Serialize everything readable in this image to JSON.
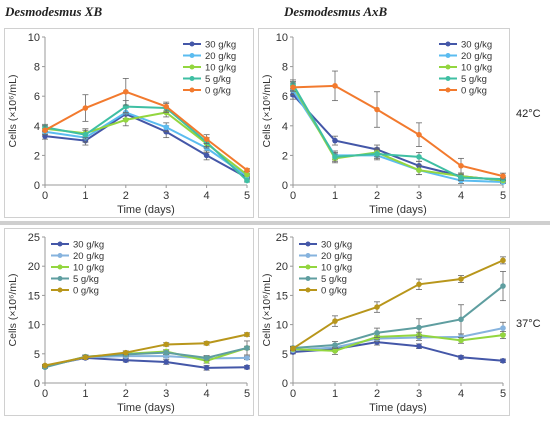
{
  "col_titles": [
    "Desmodesmus XB",
    "Desmodesmus AxB"
  ],
  "row_labels": [
    "42°C",
    "37°C"
  ],
  "colors": {
    "30 g/kg": "#4457a8",
    "20 g/kg": "#5bbcf0",
    "10 g/kg": "#93d63f",
    "5 g/kg": "#3fbfa3",
    "0 g/kg": "#f27a2e",
    "20 g/kg b": "#86b3de",
    "5 g/kg b": "#5f9ea0",
    "0 g/kg b": "#b8961b"
  },
  "chart_data": [
    {
      "type": "line",
      "panel": "top-left",
      "xlabel": "Time (days)",
      "ylabel": "Cells (×10⁶/mL)",
      "x": [
        0,
        1,
        2,
        3,
        4,
        5
      ],
      "ylim": [
        0,
        10
      ],
      "yticks": [
        0,
        2,
        4,
        6,
        8,
        10
      ],
      "legend": "top-right",
      "series": [
        {
          "name": "30 g/kg",
          "color": "30 g/kg",
          "values": [
            3.3,
            3.0,
            4.8,
            3.6,
            2.0,
            0.5
          ],
          "err": [
            0.2,
            0.3,
            0.4,
            0.4,
            0.3,
            0.1
          ]
        },
        {
          "name": "20 g/kg",
          "color": "20 g/kg",
          "values": [
            3.6,
            3.2,
            4.9,
            3.9,
            2.5,
            0.6
          ],
          "err": [
            0.2,
            0.3,
            0.4,
            0.3,
            0.3,
            0.1
          ]
        },
        {
          "name": "10 g/kg",
          "color": "10 g/kg",
          "values": [
            3.8,
            3.5,
            4.4,
            4.9,
            2.8,
            0.7
          ],
          "err": [
            0.2,
            0.3,
            0.4,
            0.3,
            0.3,
            0.1
          ]
        },
        {
          "name": "5 g/kg",
          "color": "5 g/kg",
          "values": [
            3.9,
            3.4,
            5.3,
            5.2,
            2.9,
            0.3
          ],
          "err": [
            0.2,
            0.3,
            0.4,
            0.3,
            0.3,
            0.1
          ]
        },
        {
          "name": "0 g/kg",
          "color": "0 g/kg",
          "values": [
            3.7,
            5.2,
            6.3,
            5.3,
            3.1,
            1.0
          ],
          "err": [
            0.3,
            0.9,
            0.9,
            0.3,
            0.3,
            0.1
          ]
        }
      ]
    },
    {
      "type": "line",
      "panel": "top-right",
      "xlabel": "Time (days)",
      "ylabel": "Cells (×10⁶/mL)",
      "x": [
        0,
        1,
        2,
        3,
        4,
        5
      ],
      "ylim": [
        0,
        10
      ],
      "yticks": [
        0,
        2,
        4,
        6,
        8,
        10
      ],
      "legend": "top-right",
      "series": [
        {
          "name": "30 g/kg",
          "color": "30 g/kg",
          "values": [
            6.1,
            3.0,
            2.4,
            1.3,
            0.6,
            0.3
          ],
          "err": [
            0.3,
            0.3,
            0.3,
            0.3,
            0.2,
            0.1
          ]
        },
        {
          "name": "20 g/kg",
          "color": "20 g/kg",
          "values": [
            6.4,
            2.0,
            2.0,
            1.0,
            0.3,
            0.2
          ],
          "err": [
            0.3,
            0.3,
            0.3,
            0.3,
            0.2,
            0.1
          ]
        },
        {
          "name": "10 g/kg",
          "color": "10 g/kg",
          "values": [
            6.7,
            1.8,
            2.2,
            1.0,
            0.6,
            0.3
          ],
          "err": [
            0.3,
            0.3,
            0.3,
            0.3,
            0.2,
            0.1
          ]
        },
        {
          "name": "5 g/kg",
          "color": "5 g/kg",
          "values": [
            6.8,
            1.9,
            2.1,
            1.9,
            0.5,
            0.4
          ],
          "err": [
            0.3,
            0.3,
            0.3,
            0.3,
            0.2,
            0.1
          ]
        },
        {
          "name": "0 g/kg",
          "color": "0 g/kg",
          "values": [
            6.6,
            6.7,
            5.1,
            3.4,
            1.3,
            0.6
          ],
          "err": [
            0.3,
            1.0,
            1.2,
            0.8,
            0.5,
            0.2
          ]
        }
      ]
    },
    {
      "type": "line",
      "panel": "bottom-left",
      "xlabel": "Time (days)",
      "ylabel": "Cells (×10⁶/mL)",
      "x": [
        0,
        1,
        2,
        3,
        4,
        5
      ],
      "ylim": [
        0,
        25
      ],
      "yticks": [
        0,
        5,
        10,
        15,
        20,
        25
      ],
      "legend": "top-left",
      "series": [
        {
          "name": "30 g/kg",
          "color": "30 g/kg",
          "values": [
            2.9,
            4.3,
            3.9,
            3.6,
            2.6,
            2.7
          ],
          "err": [
            0.2,
            0.3,
            0.3,
            0.4,
            0.4,
            0.3
          ]
        },
        {
          "name": "20 g/kg",
          "color": "20 g/kg b",
          "values": [
            2.8,
            4.4,
            4.6,
            4.6,
            4.2,
            4.3
          ],
          "err": [
            0.2,
            0.3,
            0.3,
            0.3,
            0.4,
            0.3
          ]
        },
        {
          "name": "10 g/kg",
          "color": "10 g/kg",
          "values": [
            2.8,
            4.5,
            5.0,
            5.4,
            3.8,
            6.0
          ],
          "err": [
            0.2,
            0.3,
            0.3,
            0.3,
            0.4,
            0.3
          ]
        },
        {
          "name": "5 g/kg",
          "color": "5 g/kg b",
          "values": [
            2.7,
            4.5,
            4.9,
            5.2,
            4.3,
            6.0
          ],
          "err": [
            0.2,
            0.3,
            0.3,
            0.3,
            0.4,
            1.2
          ]
        },
        {
          "name": "0 g/kg",
          "color": "0 g/kg b",
          "values": [
            3.0,
            4.4,
            5.2,
            6.6,
            6.8,
            8.3
          ],
          "err": [
            0.2,
            0.3,
            0.3,
            0.3,
            0.3,
            0.3
          ]
        }
      ]
    },
    {
      "type": "line",
      "panel": "bottom-right",
      "xlabel": "Time (days)",
      "ylabel": "Cells (×10⁶/mL)",
      "x": [
        0,
        1,
        2,
        3,
        4,
        5
      ],
      "ylim": [
        0,
        25
      ],
      "yticks": [
        0,
        5,
        10,
        15,
        20,
        25
      ],
      "legend": "top-left",
      "series": [
        {
          "name": "30 g/kg",
          "color": "30 g/kg",
          "values": [
            5.3,
            5.8,
            7.0,
            6.3,
            4.4,
            3.8
          ],
          "err": [
            0.3,
            0.4,
            0.5,
            0.4,
            0.3,
            0.3
          ]
        },
        {
          "name": "20 g/kg",
          "color": "20 g/kg b",
          "values": [
            5.6,
            6.1,
            7.6,
            7.8,
            7.9,
            9.4
          ],
          "err": [
            0.3,
            0.4,
            0.5,
            0.5,
            0.5,
            1.0
          ]
        },
        {
          "name": "10 g/kg",
          "color": "10 g/kg",
          "values": [
            5.8,
            5.5,
            7.9,
            8.2,
            7.3,
            8.2
          ],
          "err": [
            0.3,
            0.6,
            0.5,
            0.5,
            0.5,
            0.6
          ]
        },
        {
          "name": "5 g/kg",
          "color": "5 g/kg b",
          "values": [
            6.0,
            6.5,
            8.6,
            9.5,
            10.9,
            16.6
          ],
          "err": [
            0.3,
            0.6,
            0.8,
            1.5,
            2.5,
            2.5
          ]
        },
        {
          "name": "0 g/kg",
          "color": "0 g/kg b",
          "values": [
            5.9,
            10.6,
            13.0,
            16.9,
            17.8,
            21.0
          ],
          "err": [
            0.3,
            0.9,
            0.9,
            0.9,
            0.6,
            0.6
          ]
        }
      ]
    }
  ]
}
